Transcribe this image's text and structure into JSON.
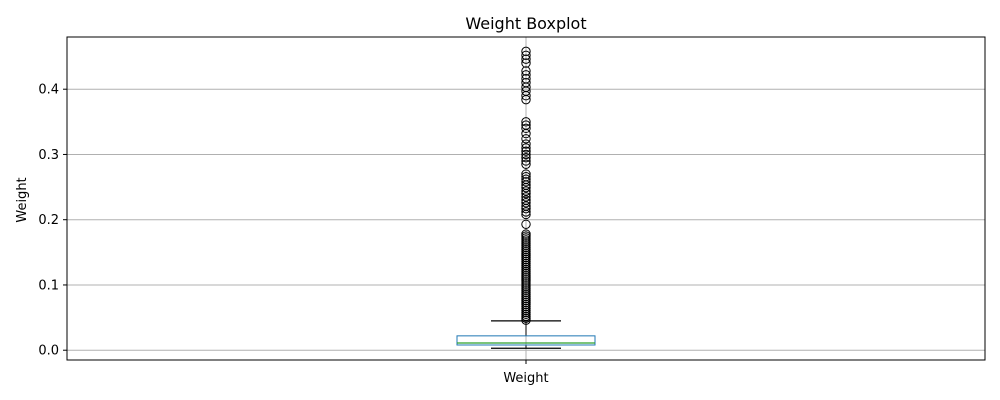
{
  "chart_data": {
    "type": "boxplot",
    "title": "Weight Boxplot",
    "ylabel": "Weight",
    "categories": [
      "Weight"
    ],
    "grid": true,
    "ylim": [
      -0.015,
      0.48
    ],
    "yticks": [
      0.0,
      0.1,
      0.2,
      0.3,
      0.4
    ],
    "ytick_labels": [
      "0.0",
      "0.1",
      "0.2",
      "0.3",
      "0.4"
    ],
    "box": {
      "whisker_low": 0.003,
      "q1": 0.008,
      "median": 0.011,
      "q3": 0.022,
      "whisker_high": 0.045
    },
    "outliers": [
      0.046,
      0.049,
      0.052,
      0.055,
      0.058,
      0.061,
      0.064,
      0.067,
      0.07,
      0.073,
      0.076,
      0.079,
      0.082,
      0.085,
      0.088,
      0.091,
      0.094,
      0.097,
      0.1,
      0.103,
      0.106,
      0.109,
      0.112,
      0.115,
      0.118,
      0.121,
      0.124,
      0.127,
      0.13,
      0.133,
      0.136,
      0.139,
      0.142,
      0.145,
      0.148,
      0.151,
      0.154,
      0.157,
      0.16,
      0.163,
      0.166,
      0.169,
      0.172,
      0.175,
      0.178,
      0.193,
      0.208,
      0.212,
      0.217,
      0.221,
      0.226,
      0.23,
      0.235,
      0.24,
      0.244,
      0.249,
      0.253,
      0.258,
      0.262,
      0.266,
      0.27,
      0.285,
      0.29,
      0.295,
      0.3,
      0.305,
      0.31,
      0.316,
      0.324,
      0.332,
      0.34,
      0.345,
      0.35,
      0.384,
      0.39,
      0.397,
      0.403,
      0.41,
      0.416,
      0.422,
      0.428,
      0.44,
      0.446,
      0.452,
      0.458
    ],
    "colors": {
      "box": "#1f77b4",
      "median": "#2ca02c",
      "whisker": "#000000",
      "flier": "#000000",
      "grid": "#b0b0b0"
    }
  }
}
